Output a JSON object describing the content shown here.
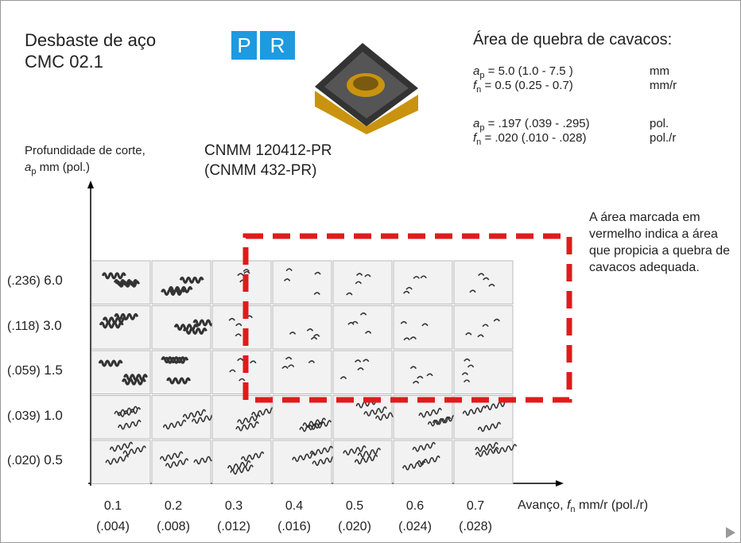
{
  "header": {
    "title_lines": [
      "Desbaste de aço",
      "CMC 02.1"
    ],
    "badges": [
      "P",
      "R"
    ],
    "insert_lines": [
      "CNMM 120412-PR",
      "(CNMM 432-PR)"
    ]
  },
  "chipbreaking": {
    "title": "Área de quebra de cavacos:",
    "params": [
      {
        "symbol": "a",
        "sub": "p",
        "expr": " = 5.0 (1.0 - 7.5 )",
        "unit": "mm"
      },
      {
        "symbol": "f",
        "sub": "n",
        "expr": " = 0.5 (0.25 - 0.7)",
        "unit": "mm/r"
      },
      {
        "symbol": "a",
        "sub": "p",
        "expr": " = .197 (.039 - .295)",
        "unit": "pol."
      },
      {
        "symbol": "f",
        "sub": "n",
        "expr": " = .020 (.010 - .028)",
        "unit": "pol./r"
      }
    ]
  },
  "note": "A área marcada em vermelho indica a área que propicia a quebra de cavacos adequada.",
  "y_axis": {
    "label": "Profundidade de corte,",
    "symbol": "a",
    "sub": "p",
    "unit": " mm (pol.)"
  },
  "x_axis": {
    "label": "Avanço, ",
    "symbol": "f",
    "sub": "n",
    "unit": " mm/r (pol./r)"
  },
  "rows": [
    {
      "inch": "(.236)",
      "mm": "6.0"
    },
    {
      "inch": "(.118)",
      "mm": "3.0"
    },
    {
      "inch": "(.059)",
      "mm": "1.5"
    },
    {
      "inch": "(.039)",
      "mm": "1.0"
    },
    {
      "inch": "(.020)",
      "mm": "0.5"
    }
  ],
  "columns": [
    {
      "mm": "0.1",
      "inch": "(.004)"
    },
    {
      "mm": "0.2",
      "inch": "(.008)"
    },
    {
      "mm": "0.3",
      "inch": "(.012)"
    },
    {
      "mm": "0.4",
      "inch": "(.016)"
    },
    {
      "mm": "0.5",
      "inch": "(.020)"
    },
    {
      "mm": "0.6",
      "inch": "(.024)"
    },
    {
      "mm": "0.7",
      "inch": "(.028)"
    }
  ]
}
